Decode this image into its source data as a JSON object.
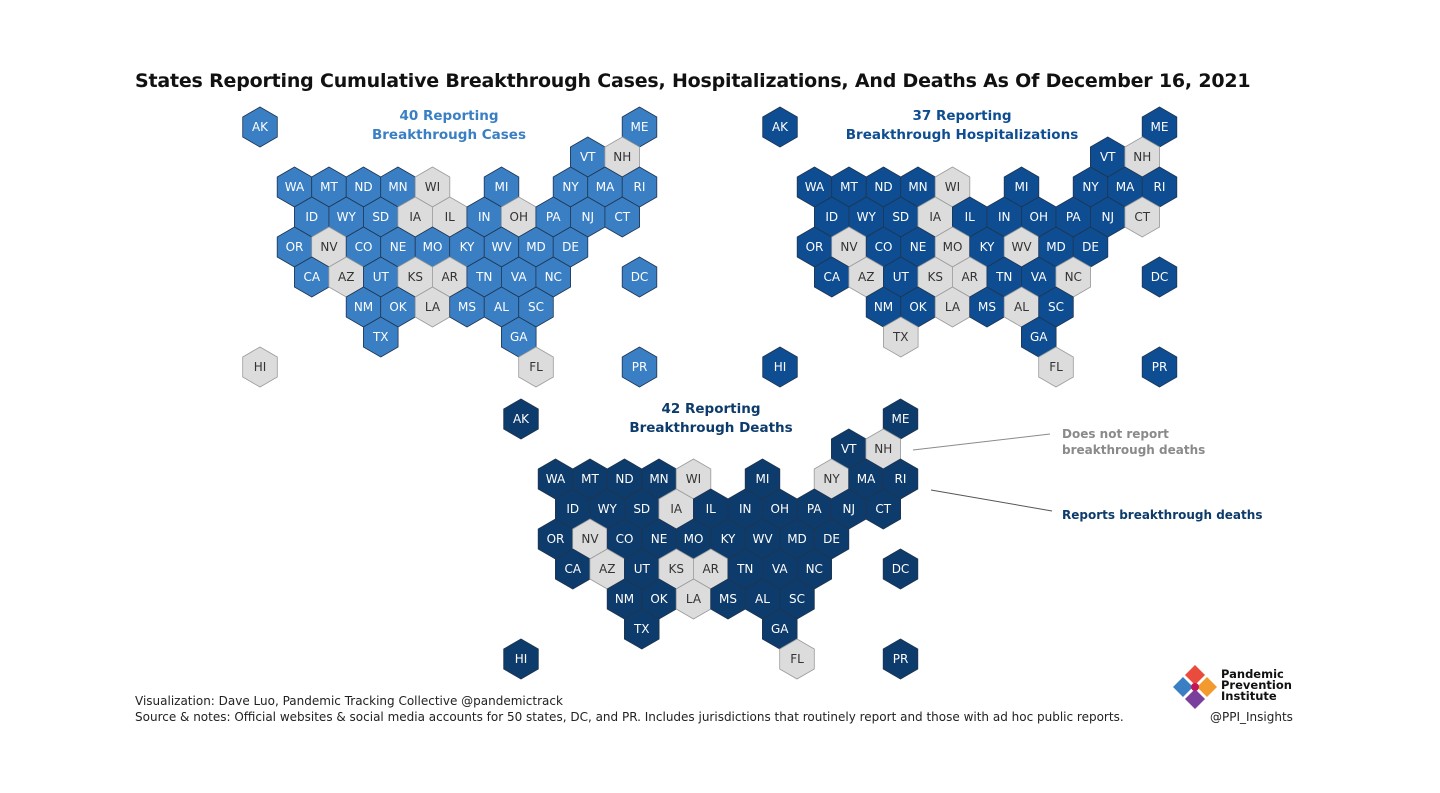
{
  "title": "States Reporting Cumulative Breakthrough Cases, Hospitalizations, And Deaths As Of December 16, 2021",
  "colors": {
    "no_report": "#dcdcdc",
    "cases": "#3a7fc4",
    "hospitalizations": "#0e4d91",
    "deaths": "#0d3b6b",
    "legend_gray": "#8a8a8a"
  },
  "panels": [
    {
      "id": "cases",
      "title_line1": "40 Reporting",
      "title_line2": "Breakthrough Cases",
      "report_color": "#3a7fc4",
      "not_reporting": [
        "NH",
        "WI",
        "IA",
        "IL",
        "OH",
        "NV",
        "AZ",
        "KS",
        "AR",
        "LA",
        "HI",
        "FL"
      ]
    },
    {
      "id": "hospitalizations",
      "title_line1": "37 Reporting",
      "title_line2": "Breakthrough Hospitalizations",
      "report_color": "#0e4d91",
      "not_reporting": [
        "NH",
        "WI",
        "IA",
        "CT",
        "NV",
        "MO",
        "WV",
        "AZ",
        "KS",
        "AR",
        "NC",
        "LA",
        "AL",
        "TX",
        "FL"
      ]
    },
    {
      "id": "deaths",
      "title_line1": "42 Reporting",
      "title_line2": "Breakthrough Deaths",
      "report_color": "#0d3b6b",
      "not_reporting": [
        "NH",
        "WI",
        "IA",
        "NY",
        "NV",
        "AZ",
        "KS",
        "AR",
        "LA",
        "FL"
      ]
    }
  ],
  "states": [
    {
      "abbr": "AK",
      "col": 0,
      "row": 0,
      "special": true
    },
    {
      "abbr": "ME",
      "col": 11,
      "row": 0,
      "special": true
    },
    {
      "abbr": "VT",
      "col": 9.5,
      "row": 1
    },
    {
      "abbr": "NH",
      "col": 10.5,
      "row": 1
    },
    {
      "abbr": "WA",
      "col": 1,
      "row": 2
    },
    {
      "abbr": "MT",
      "col": 2,
      "row": 2
    },
    {
      "abbr": "ND",
      "col": 3,
      "row": 2
    },
    {
      "abbr": "MN",
      "col": 4,
      "row": 2
    },
    {
      "abbr": "WI",
      "col": 5,
      "row": 2
    },
    {
      "abbr": "MI",
      "col": 7,
      "row": 2
    },
    {
      "abbr": "NY",
      "col": 9,
      "row": 2
    },
    {
      "abbr": "MA",
      "col": 10,
      "row": 2
    },
    {
      "abbr": "RI",
      "col": 11,
      "row": 2
    },
    {
      "abbr": "ID",
      "col": 1.5,
      "row": 3
    },
    {
      "abbr": "WY",
      "col": 2.5,
      "row": 3
    },
    {
      "abbr": "SD",
      "col": 3.5,
      "row": 3
    },
    {
      "abbr": "IA",
      "col": 4.5,
      "row": 3
    },
    {
      "abbr": "IL",
      "col": 5.5,
      "row": 3
    },
    {
      "abbr": "IN",
      "col": 6.5,
      "row": 3
    },
    {
      "abbr": "OH",
      "col": 7.5,
      "row": 3
    },
    {
      "abbr": "PA",
      "col": 8.5,
      "row": 3
    },
    {
      "abbr": "NJ",
      "col": 9.5,
      "row": 3
    },
    {
      "abbr": "CT",
      "col": 10.5,
      "row": 3
    },
    {
      "abbr": "OR",
      "col": 1,
      "row": 4
    },
    {
      "abbr": "NV",
      "col": 2,
      "row": 4
    },
    {
      "abbr": "CO",
      "col": 3,
      "row": 4
    },
    {
      "abbr": "NE",
      "col": 4,
      "row": 4
    },
    {
      "abbr": "MO",
      "col": 5,
      "row": 4
    },
    {
      "abbr": "KY",
      "col": 6,
      "row": 4
    },
    {
      "abbr": "WV",
      "col": 7,
      "row": 4
    },
    {
      "abbr": "MD",
      "col": 8,
      "row": 4
    },
    {
      "abbr": "DE",
      "col": 9,
      "row": 4
    },
    {
      "abbr": "CA",
      "col": 1.5,
      "row": 5
    },
    {
      "abbr": "AZ",
      "col": 2.5,
      "row": 5
    },
    {
      "abbr": "UT",
      "col": 3.5,
      "row": 5
    },
    {
      "abbr": "KS",
      "col": 4.5,
      "row": 5
    },
    {
      "abbr": "AR",
      "col": 5.5,
      "row": 5
    },
    {
      "abbr": "TN",
      "col": 6.5,
      "row": 5
    },
    {
      "abbr": "VA",
      "col": 7.5,
      "row": 5
    },
    {
      "abbr": "NC",
      "col": 8.5,
      "row": 5
    },
    {
      "abbr": "DC",
      "col": 11,
      "row": 5,
      "special": true
    },
    {
      "abbr": "NM",
      "col": 3,
      "row": 6
    },
    {
      "abbr": "OK",
      "col": 4,
      "row": 6
    },
    {
      "abbr": "LA",
      "col": 5,
      "row": 6
    },
    {
      "abbr": "MS",
      "col": 6,
      "row": 6
    },
    {
      "abbr": "AL",
      "col": 7,
      "row": 6
    },
    {
      "abbr": "SC",
      "col": 8,
      "row": 6
    },
    {
      "abbr": "TX",
      "col": 3.5,
      "row": 7
    },
    {
      "abbr": "GA",
      "col": 7.5,
      "row": 7
    },
    {
      "abbr": "HI",
      "col": 0,
      "row": 8,
      "special": true
    },
    {
      "abbr": "FL",
      "col": 8,
      "row": 8
    },
    {
      "abbr": "PR",
      "col": 11,
      "row": 8,
      "special": true
    }
  ],
  "legend": {
    "not_report_line1": "Does not report",
    "not_report_line2": "breakthrough deaths",
    "report": "Reports breakthrough deaths"
  },
  "footer": {
    "line1": "Visualization: Dave Luo, Pandemic Tracking Collective @pandemictrack",
    "line2": "Source & notes: Official websites & social media accounts for 50 states, DC, and PR. Includes jurisdictions that routinely report and those with ad hoc public reports."
  },
  "logo": {
    "line1": "Pandemic",
    "line2": "Prevention",
    "line3": "Institute",
    "handle": "@PPI_Insights"
  }
}
